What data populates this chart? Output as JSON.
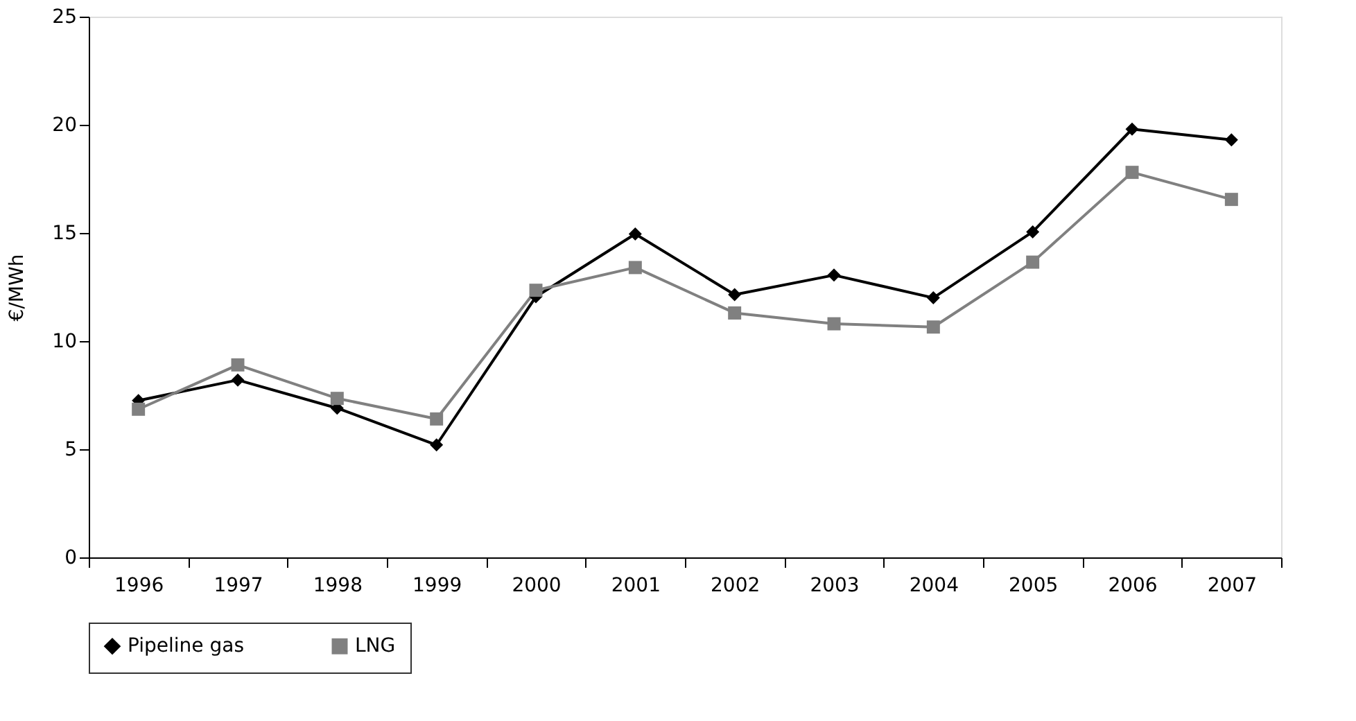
{
  "chart_data": {
    "type": "line",
    "ylabel": "€/MWh",
    "categories": [
      "1996",
      "1997",
      "1998",
      "1999",
      "2000",
      "2001",
      "2002",
      "2003",
      "2004",
      "2005",
      "2006",
      "2007"
    ],
    "series": [
      {
        "name": "Pipeline gas",
        "color": "#000000",
        "marker": "diamond",
        "values": [
          7.25,
          8.2,
          6.9,
          5.2,
          12.05,
          14.95,
          12.15,
          13.05,
          12.0,
          15.05,
          19.8,
          19.3
        ]
      },
      {
        "name": "LNG",
        "color": "#808080",
        "marker": "square",
        "values": [
          6.85,
          8.9,
          7.35,
          6.4,
          12.35,
          13.4,
          11.3,
          10.8,
          10.65,
          13.65,
          17.8,
          16.55
        ]
      }
    ],
    "ylim": [
      0,
      25
    ],
    "yticks": [
      0,
      5,
      10,
      15,
      20,
      25
    ],
    "grid": false,
    "legend": "bottom",
    "line_style": "solid"
  }
}
